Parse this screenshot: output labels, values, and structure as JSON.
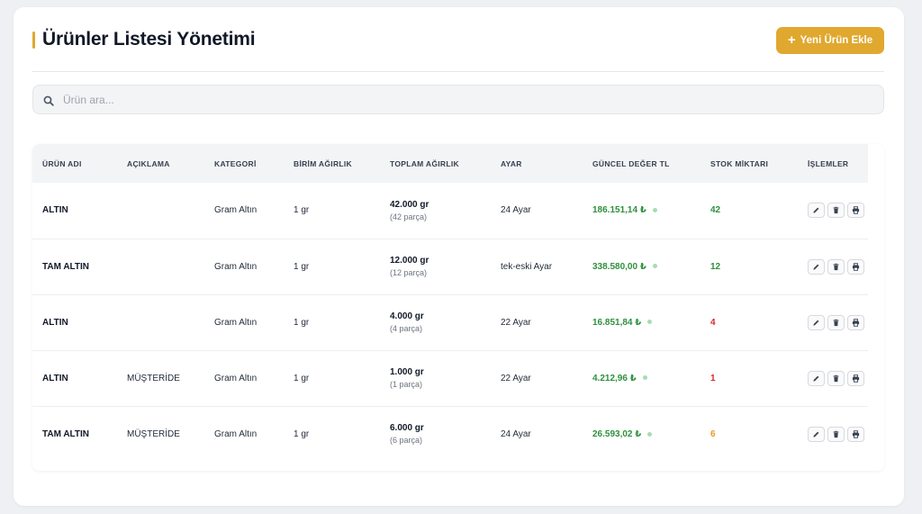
{
  "colors": {
    "accent": "#e0a82e",
    "value_green": "#2f8f3e",
    "stock_green": "#2f8f3e",
    "stock_red": "#dc2626",
    "stock_orange": "#e89a28"
  },
  "header": {
    "title": "Ürünler Listesi Yönetimi",
    "add_button_icon": "plus-icon",
    "add_button_label": "Yeni Ürün Ekle"
  },
  "search": {
    "icon": "search-icon",
    "placeholder": "Ürün ara...",
    "value": ""
  },
  "table": {
    "columns": [
      "ÜRÜN ADI",
      "AÇIKLAMA",
      "KATEGORİ",
      "BİRİM AĞIRLIK",
      "TOPLAM AĞIRLIK",
      "AYAR",
      "GÜNCEL DEĞER TL",
      "STOK MİKTARI",
      "İŞLEMLER"
    ],
    "rows": [
      {
        "name": "ALTIN",
        "description": "",
        "category": "Gram Altın",
        "unit_weight": "1 gr",
        "total_weight": "42.000 gr",
        "pieces": "(42 parça)",
        "karat": "24 Ayar",
        "value": "186.151,14 ₺",
        "stock": "42",
        "stock_status": "green"
      },
      {
        "name": "TAM ALTIN",
        "description": "",
        "category": "Gram Altın",
        "unit_weight": "1 gr",
        "total_weight": "12.000 gr",
        "pieces": "(12 parça)",
        "karat": "tek-eski Ayar",
        "value": "338.580,00 ₺",
        "stock": "12",
        "stock_status": "green"
      },
      {
        "name": "ALTIN",
        "description": "",
        "category": "Gram Altın",
        "unit_weight": "1 gr",
        "total_weight": "4.000 gr",
        "pieces": "(4 parça)",
        "karat": "22 Ayar",
        "value": "16.851,84 ₺",
        "stock": "4",
        "stock_status": "red"
      },
      {
        "name": "ALTIN",
        "description": "MÜŞTERİDE",
        "category": "Gram Altın",
        "unit_weight": "1 gr",
        "total_weight": "1.000 gr",
        "pieces": "(1 parça)",
        "karat": "22 Ayar",
        "value": "4.212,96 ₺",
        "stock": "1",
        "stock_status": "red"
      },
      {
        "name": "TAM ALTIN",
        "description": "MÜŞTERİDE",
        "category": "Gram Altın",
        "unit_weight": "1 gr",
        "total_weight": "6.000 gr",
        "pieces": "(6 parça)",
        "karat": "24 Ayar",
        "value": "26.593,02 ₺",
        "stock": "6",
        "stock_status": "orange"
      }
    ],
    "row_actions": [
      "edit-icon",
      "trash-icon",
      "print-icon"
    ]
  }
}
